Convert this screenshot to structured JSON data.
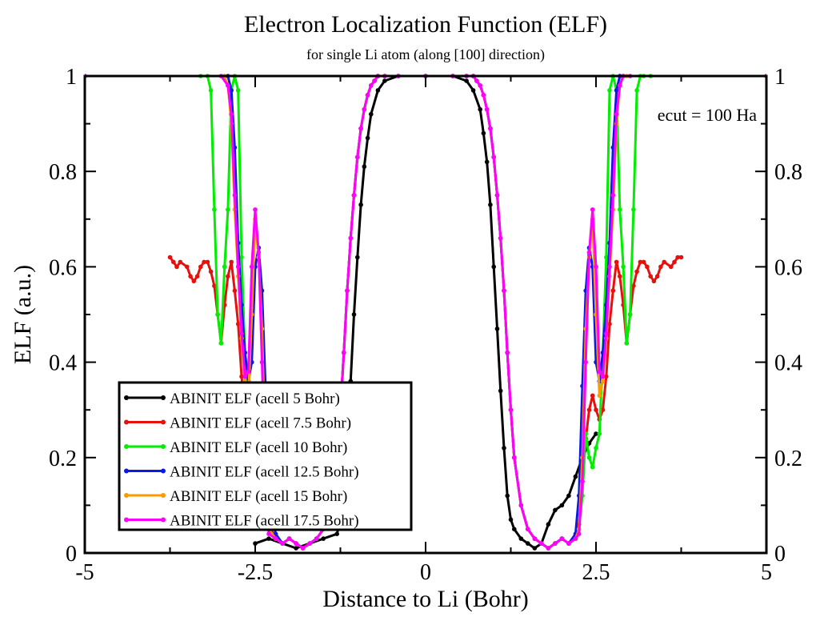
{
  "chart_data": {
    "type": "line",
    "title": "Electron Localization Function (ELF)",
    "subtitle": "for single Li atom (along [100] direction)",
    "xlabel": "Distance to Li (Bohr)",
    "ylabel": "ELF (a.u.)",
    "annotation": "ecut = 100 Ha",
    "xlim": [
      -5,
      5
    ],
    "ylim": [
      0,
      1
    ],
    "x_ticks": [
      -5,
      -2.5,
      0,
      2.5,
      5
    ],
    "x_tick_labels": [
      "-5",
      "-2.5",
      "0",
      "2.5",
      "5"
    ],
    "y_ticks": [
      0,
      0.2,
      0.4,
      0.6,
      0.8,
      1
    ],
    "y_tick_labels": [
      "0",
      "0.2",
      "0.4",
      "0.6",
      "0.8",
      "1"
    ],
    "grid": false,
    "legend_position": "bottom-left",
    "series": [
      {
        "name": "ABINIT ELF (acell 5 Bohr)",
        "color": "#000000",
        "x": [
          -2.5,
          -2.3,
          -2.1,
          -1.9,
          -1.7,
          -1.5,
          -1.3,
          -1.2,
          -1.15,
          -1.1,
          -1.05,
          -1.0,
          -0.95,
          -0.9,
          -0.85,
          -0.8,
          -0.7,
          -0.6,
          -0.4,
          0,
          0.4,
          0.6,
          0.7,
          0.8,
          0.85,
          0.9,
          0.95,
          1.0,
          1.05,
          1.1,
          1.15,
          1.2,
          1.25,
          1.3,
          1.4,
          1.5,
          1.6,
          1.7,
          1.8,
          1.9,
          2.0,
          2.1,
          2.2,
          2.3,
          2.4,
          2.5
        ],
        "y": [
          0.02,
          0.03,
          0.02,
          0.01,
          0.02,
          0.03,
          0.04,
          0.1,
          0.23,
          0.36,
          0.5,
          0.62,
          0.73,
          0.81,
          0.87,
          0.92,
          0.97,
          0.99,
          1.0,
          1.0,
          1.0,
          0.99,
          0.97,
          0.93,
          0.88,
          0.82,
          0.73,
          0.6,
          0.47,
          0.34,
          0.22,
          0.12,
          0.07,
          0.05,
          0.03,
          0.02,
          0.01,
          0.02,
          0.06,
          0.09,
          0.1,
          0.12,
          0.16,
          0.2,
          0.23,
          0.25
        ]
      },
      {
        "name": "ABINIT ELF (acell 7.5 Bohr)",
        "color": "#e8100c",
        "x": [
          -3.75,
          -3.7,
          -3.65,
          -3.6,
          -3.5,
          -3.45,
          -3.4,
          -3.35,
          -3.3,
          -3.25,
          -3.2,
          -3.15,
          -3.1,
          -3.05,
          -3.0,
          -2.95,
          -2.9,
          -2.85,
          -2.8,
          -2.75,
          -2.7,
          -2.65,
          -2.6,
          -2.55,
          -2.5,
          -2.45,
          -2.4,
          -2.35,
          -2.3,
          -2.2,
          -2.1,
          -2.0,
          -1.9,
          -1.8,
          -1.7,
          -1.6,
          -1.5,
          -1.4,
          -1.3,
          -1.25,
          -1.2,
          -1.15,
          -1.1,
          -1.05,
          -1.0,
          -0.95,
          -0.9,
          -0.85,
          -0.8,
          -0.75,
          -0.7,
          -0.6,
          -0.4,
          0,
          0.4,
          0.6,
          0.7,
          0.75,
          0.8,
          0.85,
          0.9,
          0.95,
          1.0,
          1.05,
          1.1,
          1.15,
          1.2,
          1.25,
          1.3,
          1.4,
          1.5,
          1.6,
          1.7,
          1.8,
          1.9,
          2.0,
          2.1,
          2.2,
          2.25,
          2.3,
          2.35,
          2.4,
          2.45,
          2.5,
          2.55,
          2.6,
          2.65,
          2.7,
          2.75,
          2.8,
          2.85,
          2.9,
          2.95,
          3.0,
          3.05,
          3.1,
          3.15,
          3.2,
          3.25,
          3.3,
          3.35,
          3.4,
          3.45,
          3.5,
          3.6,
          3.65,
          3.7,
          3.75
        ],
        "y": [
          0.62,
          0.61,
          0.6,
          0.61,
          0.6,
          0.58,
          0.57,
          0.58,
          0.6,
          0.61,
          0.61,
          0.59,
          0.56,
          0.5,
          0.44,
          0.52,
          0.58,
          0.61,
          0.55,
          0.48,
          0.37,
          0.3,
          0.28,
          0.3,
          0.33,
          0.3,
          0.24,
          0.15,
          0.06,
          0.03,
          0.02,
          0.03,
          0.02,
          0.01,
          0.02,
          0.03,
          0.05,
          0.1,
          0.2,
          0.3,
          0.42,
          0.55,
          0.66,
          0.75,
          0.83,
          0.89,
          0.93,
          0.96,
          0.98,
          0.99,
          1.0,
          1.0,
          1.0,
          1.0,
          1.0,
          1.0,
          1.0,
          0.99,
          0.98,
          0.96,
          0.93,
          0.89,
          0.83,
          0.75,
          0.66,
          0.55,
          0.42,
          0.3,
          0.2,
          0.1,
          0.05,
          0.03,
          0.02,
          0.01,
          0.02,
          0.03,
          0.02,
          0.03,
          0.06,
          0.15,
          0.24,
          0.3,
          0.33,
          0.3,
          0.28,
          0.3,
          0.37,
          0.48,
          0.55,
          0.61,
          0.58,
          0.52,
          0.44,
          0.5,
          0.56,
          0.59,
          0.61,
          0.61,
          0.6,
          0.58,
          0.57,
          0.58,
          0.6,
          0.61,
          0.6,
          0.61,
          0.62,
          0.62
        ]
      },
      {
        "name": "ABINIT ELF (acell 10 Bohr)",
        "color": "#00ee00",
        "x": [
          -5.0,
          -3.3,
          -3.2,
          -3.15,
          -3.1,
          -3.05,
          -3.0,
          -2.95,
          -2.9,
          -2.85,
          -2.8,
          -2.75,
          -2.7,
          -2.65,
          -2.6,
          -2.55,
          -2.5,
          -2.45,
          -2.4,
          -2.35,
          -2.3,
          -2.2,
          -2.1,
          -2.0,
          -1.9,
          -1.8,
          -1.7,
          -1.6,
          -1.5,
          -1.4,
          -1.3,
          -1.25,
          -1.2,
          -1.15,
          -1.1,
          -1.05,
          -1.0,
          -0.95,
          -0.9,
          -0.85,
          -0.8,
          -0.75,
          -0.7,
          -0.6,
          -0.4,
          0,
          0.4,
          0.6,
          0.7,
          0.75,
          0.8,
          0.85,
          0.9,
          0.95,
          1.0,
          1.05,
          1.1,
          1.15,
          1.2,
          1.25,
          1.3,
          1.4,
          1.5,
          1.6,
          1.7,
          1.8,
          1.9,
          2.0,
          2.1,
          2.2,
          2.25,
          2.3,
          2.35,
          2.4,
          2.45,
          2.5,
          2.55,
          2.6,
          2.65,
          2.7,
          2.75,
          2.8,
          2.85,
          2.9,
          2.95,
          3.0,
          3.05,
          3.1,
          3.15,
          3.2,
          3.3,
          5.0
        ],
        "y": [
          1.0,
          1.0,
          1.0,
          0.97,
          0.72,
          0.5,
          0.44,
          0.6,
          0.72,
          0.97,
          1.0,
          0.97,
          0.62,
          0.42,
          0.25,
          0.22,
          0.18,
          0.2,
          0.25,
          0.12,
          0.05,
          0.03,
          0.02,
          0.03,
          0.02,
          0.01,
          0.02,
          0.03,
          0.05,
          0.1,
          0.2,
          0.3,
          0.42,
          0.55,
          0.66,
          0.75,
          0.83,
          0.89,
          0.93,
          0.96,
          0.98,
          0.99,
          1.0,
          1.0,
          1.0,
          1.0,
          1.0,
          1.0,
          1.0,
          0.99,
          0.98,
          0.96,
          0.93,
          0.89,
          0.83,
          0.75,
          0.66,
          0.55,
          0.42,
          0.3,
          0.2,
          0.1,
          0.05,
          0.03,
          0.02,
          0.01,
          0.02,
          0.03,
          0.02,
          0.03,
          0.05,
          0.12,
          0.25,
          0.2,
          0.18,
          0.22,
          0.25,
          0.42,
          0.62,
          0.97,
          1.0,
          0.97,
          0.72,
          0.6,
          0.44,
          0.5,
          0.72,
          0.97,
          1.0,
          1.0,
          1.0,
          1.0
        ]
      },
      {
        "name": "ABINIT ELF (acell 12.5 Bohr)",
        "color": "#0a1ae6",
        "x": [
          -5.0,
          -2.9,
          -2.85,
          -2.8,
          -2.75,
          -2.7,
          -2.65,
          -2.6,
          -2.55,
          -2.5,
          -2.45,
          -2.4,
          -2.35,
          -2.3,
          -2.2,
          -2.1,
          -2.0,
          -1.9,
          -1.8,
          -1.7,
          -1.6,
          -1.5,
          -1.4,
          -1.3,
          -1.25,
          -1.2,
          -1.15,
          -1.1,
          -1.05,
          -1.0,
          -0.95,
          -0.9,
          -0.85,
          -0.8,
          -0.75,
          -0.7,
          -0.6,
          -0.4,
          0,
          0.4,
          0.6,
          0.7,
          0.75,
          0.8,
          0.85,
          0.9,
          0.95,
          1.0,
          1.05,
          1.1,
          1.15,
          1.2,
          1.25,
          1.3,
          1.4,
          1.5,
          1.6,
          1.7,
          1.8,
          1.9,
          2.0,
          2.1,
          2.2,
          2.25,
          2.3,
          2.35,
          2.4,
          2.45,
          2.5,
          2.55,
          2.6,
          2.65,
          2.7,
          2.75,
          2.8,
          2.85,
          2.9,
          5.0
        ],
        "y": [
          1.0,
          1.0,
          0.97,
          0.85,
          0.65,
          0.52,
          0.42,
          0.36,
          0.4,
          0.6,
          0.64,
          0.55,
          0.35,
          0.12,
          0.04,
          0.02,
          0.03,
          0.02,
          0.01,
          0.02,
          0.03,
          0.05,
          0.1,
          0.2,
          0.3,
          0.42,
          0.55,
          0.66,
          0.75,
          0.83,
          0.89,
          0.93,
          0.96,
          0.98,
          0.99,
          1.0,
          1.0,
          1.0,
          1.0,
          1.0,
          1.0,
          1.0,
          0.99,
          0.98,
          0.96,
          0.93,
          0.89,
          0.83,
          0.75,
          0.66,
          0.55,
          0.42,
          0.3,
          0.2,
          0.1,
          0.05,
          0.03,
          0.02,
          0.01,
          0.02,
          0.03,
          0.02,
          0.04,
          0.12,
          0.35,
          0.55,
          0.64,
          0.6,
          0.4,
          0.36,
          0.42,
          0.52,
          0.65,
          0.85,
          0.97,
          1.0,
          1.0,
          1.0
        ]
      },
      {
        "name": "ABINIT ELF (acell 15 Bohr)",
        "color": "#ff9900",
        "x": [
          -5.0,
          -2.95,
          -2.9,
          -2.85,
          -2.8,
          -2.75,
          -2.7,
          -2.65,
          -2.6,
          -2.55,
          -2.5,
          -2.45,
          -2.4,
          -2.35,
          -2.3,
          -2.2,
          -2.1,
          -2.0,
          -1.9,
          -1.8,
          -1.7,
          -1.6,
          -1.5,
          -1.4,
          -1.3,
          -1.25,
          -1.2,
          -1.15,
          -1.1,
          -1.05,
          -1.0,
          -0.95,
          -0.9,
          -0.85,
          -0.8,
          -0.75,
          -0.7,
          -0.6,
          -0.4,
          0,
          0.4,
          0.6,
          0.7,
          0.75,
          0.8,
          0.85,
          0.9,
          0.95,
          1.0,
          1.05,
          1.1,
          1.15,
          1.2,
          1.25,
          1.3,
          1.4,
          1.5,
          1.6,
          1.7,
          1.8,
          1.9,
          2.0,
          2.1,
          2.2,
          2.25,
          2.3,
          2.35,
          2.4,
          2.45,
          2.5,
          2.55,
          2.6,
          2.65,
          2.7,
          2.75,
          2.8,
          2.85,
          2.9,
          2.95,
          5.0
        ],
        "y": [
          1.0,
          1.0,
          0.98,
          0.9,
          0.72,
          0.58,
          0.45,
          0.36,
          0.33,
          0.5,
          0.7,
          0.62,
          0.47,
          0.2,
          0.05,
          0.03,
          0.02,
          0.03,
          0.02,
          0.01,
          0.02,
          0.03,
          0.05,
          0.1,
          0.2,
          0.3,
          0.42,
          0.55,
          0.66,
          0.75,
          0.83,
          0.89,
          0.93,
          0.96,
          0.98,
          0.99,
          1.0,
          1.0,
          1.0,
          1.0,
          1.0,
          1.0,
          1.0,
          0.99,
          0.98,
          0.96,
          0.93,
          0.89,
          0.83,
          0.75,
          0.66,
          0.55,
          0.42,
          0.3,
          0.2,
          0.1,
          0.05,
          0.03,
          0.02,
          0.01,
          0.02,
          0.03,
          0.02,
          0.03,
          0.05,
          0.2,
          0.47,
          0.62,
          0.7,
          0.5,
          0.33,
          0.36,
          0.45,
          0.58,
          0.72,
          0.9,
          0.98,
          1.0,
          1.0,
          1.0
        ]
      },
      {
        "name": "ABINIT ELF (acell 17.5 Bohr)",
        "color": "#ff00ff",
        "x": [
          -5.0,
          -3.0,
          -2.9,
          -2.85,
          -2.8,
          -2.75,
          -2.7,
          -2.65,
          -2.6,
          -2.55,
          -2.5,
          -2.45,
          -2.4,
          -2.35,
          -2.3,
          -2.2,
          -2.1,
          -2.0,
          -1.9,
          -1.8,
          -1.7,
          -1.6,
          -1.5,
          -1.4,
          -1.3,
          -1.25,
          -1.2,
          -1.15,
          -1.1,
          -1.05,
          -1.0,
          -0.95,
          -0.9,
          -0.85,
          -0.8,
          -0.75,
          -0.7,
          -0.6,
          -0.4,
          0,
          0.4,
          0.6,
          0.7,
          0.75,
          0.8,
          0.85,
          0.9,
          0.95,
          1.0,
          1.05,
          1.1,
          1.15,
          1.2,
          1.25,
          1.3,
          1.4,
          1.5,
          1.6,
          1.7,
          1.8,
          1.9,
          2.0,
          2.1,
          2.2,
          2.25,
          2.3,
          2.35,
          2.4,
          2.45,
          2.5,
          2.55,
          2.6,
          2.65,
          2.7,
          2.75,
          2.8,
          2.85,
          2.9,
          3.0,
          5.0
        ],
        "y": [
          1.0,
          1.0,
          0.98,
          0.92,
          0.75,
          0.6,
          0.46,
          0.37,
          0.38,
          0.6,
          0.72,
          0.63,
          0.4,
          0.15,
          0.04,
          0.03,
          0.02,
          0.03,
          0.02,
          0.01,
          0.02,
          0.03,
          0.05,
          0.1,
          0.2,
          0.3,
          0.42,
          0.55,
          0.66,
          0.75,
          0.83,
          0.89,
          0.93,
          0.96,
          0.98,
          0.99,
          1.0,
          1.0,
          1.0,
          1.0,
          1.0,
          1.0,
          1.0,
          0.99,
          0.98,
          0.96,
          0.93,
          0.89,
          0.83,
          0.75,
          0.66,
          0.55,
          0.42,
          0.3,
          0.2,
          0.1,
          0.05,
          0.03,
          0.02,
          0.01,
          0.02,
          0.03,
          0.02,
          0.03,
          0.04,
          0.15,
          0.4,
          0.63,
          0.72,
          0.6,
          0.38,
          0.37,
          0.46,
          0.6,
          0.75,
          0.92,
          0.98,
          1.0,
          1.0,
          1.0
        ]
      }
    ]
  }
}
